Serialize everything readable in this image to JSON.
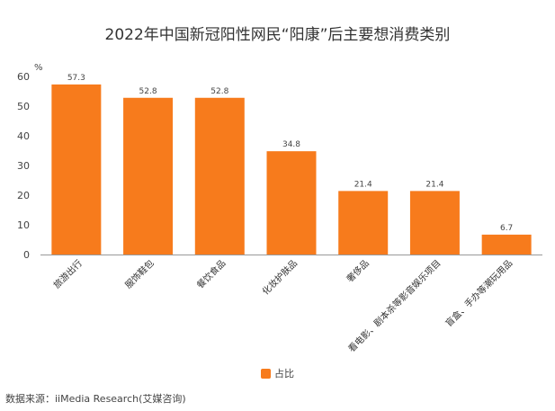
{
  "colors": {
    "bar": "#f77b1c",
    "axis": "#999999",
    "text": "#333333"
  },
  "chart_data": {
    "type": "bar",
    "title": "2022年中国新冠阳性网民“阳康”后主要想消费类别",
    "ylabel": "%",
    "ylim": [
      0,
      60
    ],
    "yticks": [
      0,
      10,
      20,
      30,
      40,
      50,
      60
    ],
    "categories": [
      "旅游出行",
      "服饰鞋包",
      "餐饮食品",
      "化妆护肤品",
      "奢侈品",
      "看电影、剧本杀等影音娱乐项目",
      "盲盒、手办等潮玩用品"
    ],
    "series": [
      {
        "name": "占比",
        "values": [
          57.3,
          52.8,
          52.8,
          34.8,
          21.4,
          21.4,
          6.7
        ]
      }
    ],
    "data_labels": [
      "57.3",
      "52.8",
      "52.8",
      "34.8",
      "21.4",
      "21.4",
      "6.7"
    ],
    "legend_position": "bottom",
    "grid": false
  },
  "source": "数据来源：iiMedia Research(艾媒咨询)"
}
